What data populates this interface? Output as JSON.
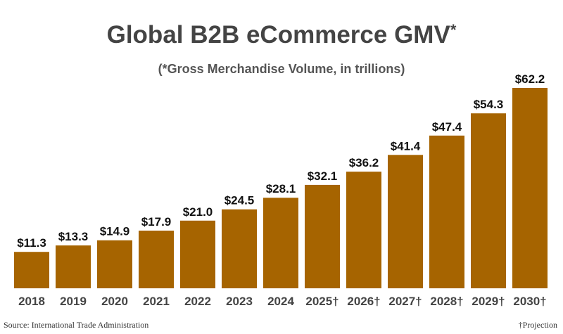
{
  "chart_data": {
    "type": "bar",
    "title": "Global B2B eCommerce GMV",
    "title_mark": "*",
    "subtitle": "(*Gross Merchandise Volume, in trillions)",
    "categories": [
      "2018",
      "2019",
      "2020",
      "2021",
      "2022",
      "2023",
      "2024",
      "2025†",
      "2026†",
      "2027†",
      "2028†",
      "2029†",
      "2030†"
    ],
    "values": [
      11.3,
      13.3,
      14.9,
      17.9,
      21.0,
      24.5,
      28.1,
      32.1,
      36.2,
      41.4,
      47.4,
      54.3,
      62.2
    ],
    "data_labels": [
      "$11.3",
      "$13.3",
      "$14.9",
      "$17.9",
      "$21.0",
      "$24.5",
      "$28.1",
      "$32.1",
      "$36.2",
      "$41.4",
      "$47.4",
      "$54.3",
      "$62.2"
    ],
    "xlabel": "",
    "ylabel": "",
    "ylim": [
      0,
      62.2
    ],
    "grid": false,
    "bar_color": "#A66400"
  },
  "footer": {
    "source": "Source: International Trade Administration",
    "note": "†Projection"
  }
}
